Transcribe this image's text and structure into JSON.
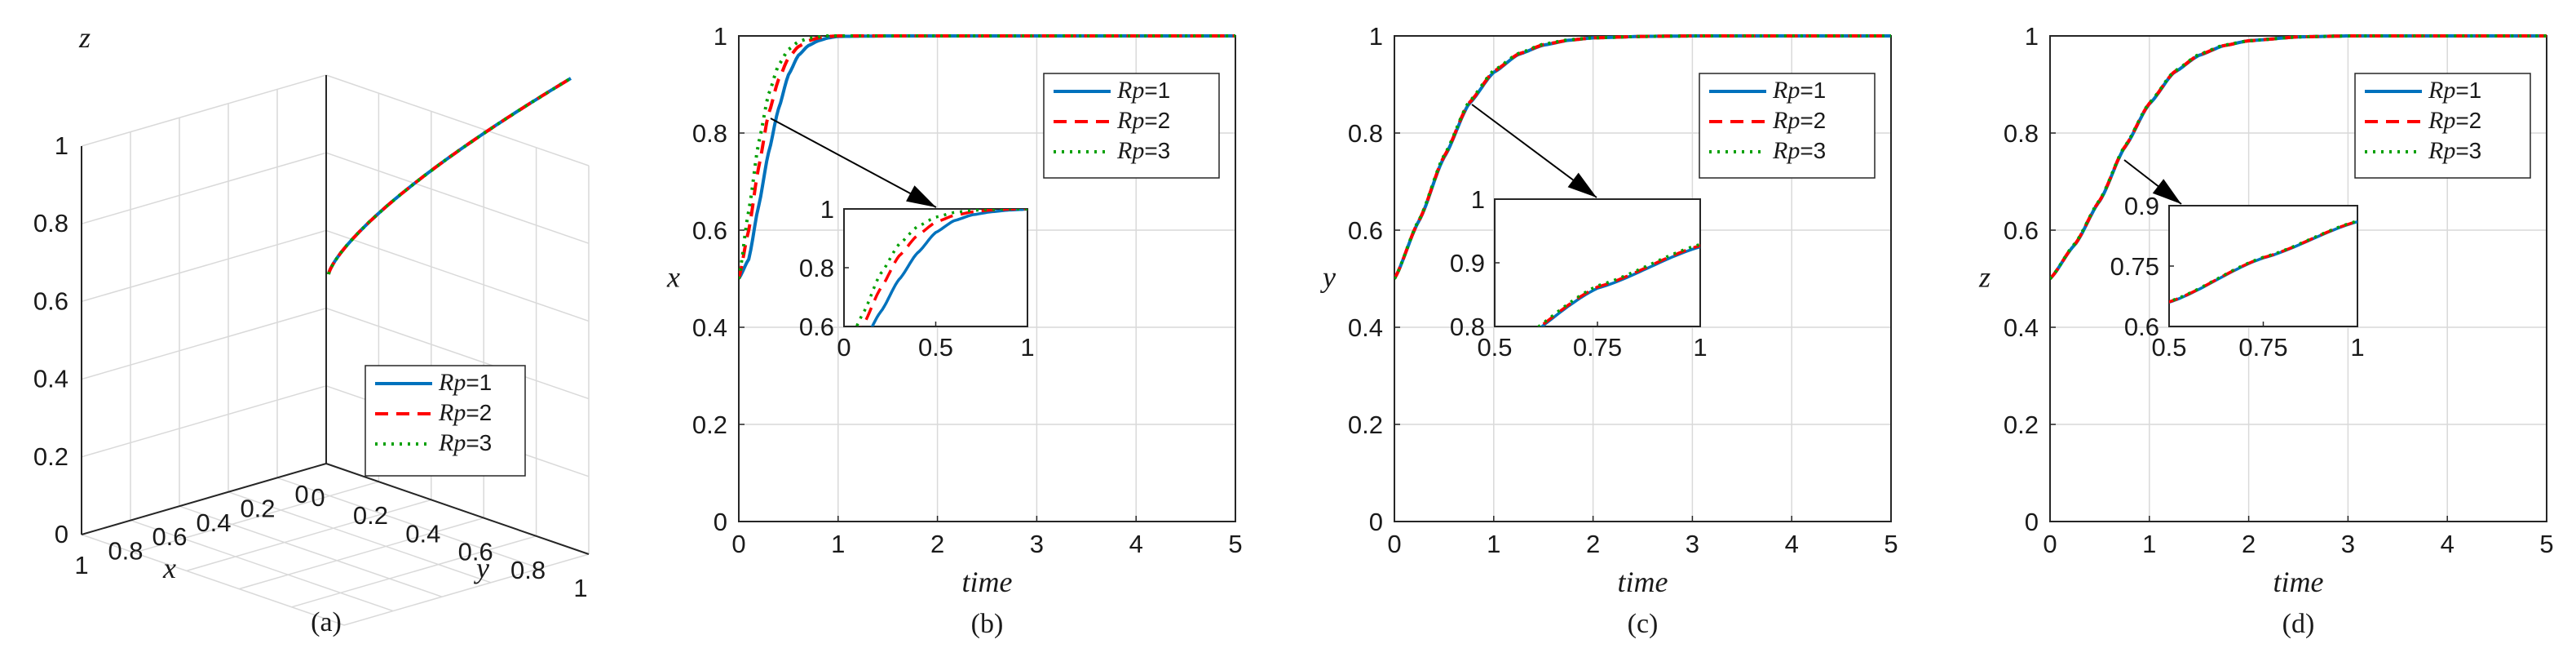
{
  "colors": {
    "rp1": "#0072BD",
    "rp2": "#FF0000",
    "rp3": "#00A000",
    "grid": "#d9d9d9",
    "axis": "#262626"
  },
  "legend_names": [
    "Rp=1",
    "Rp=2",
    "Rp=3"
  ],
  "legend": {
    "prefix": "Rp",
    "suffixes": [
      "=1",
      "=2",
      "=3"
    ]
  },
  "chart_data": [
    {
      "panel": "a",
      "type": "line3d",
      "caption": "(a)",
      "xlabel": "x",
      "ylabel": "y",
      "zlabel": "z",
      "xlim": [
        0,
        1
      ],
      "ylim": [
        0,
        1
      ],
      "zlim": [
        0,
        1
      ],
      "xticks": [
        "0",
        "0.2",
        "0.4",
        "0.6",
        "0.8",
        "1"
      ],
      "yticks": [
        "0",
        "0.2",
        "0.4",
        "0.6",
        "0.8",
        "1"
      ],
      "zticks": [
        "0",
        "0.2",
        "0.4",
        "0.6",
        "0.8",
        "1"
      ],
      "grid": true,
      "legend_position": "bottom-right",
      "series": [
        {
          "name": "Rp=1",
          "style": "solid",
          "x": [
            0.5,
            0.62,
            0.75,
            0.85,
            0.92,
            0.97,
            1.0
          ],
          "y": [
            0.5,
            0.56,
            0.66,
            0.76,
            0.85,
            0.93,
            1.0
          ],
          "z": [
            0.5,
            0.55,
            0.62,
            0.7,
            0.79,
            0.89,
            1.0
          ]
        },
        {
          "name": "Rp=2",
          "style": "dashed",
          "x": [
            0.5,
            0.66,
            0.8,
            0.89,
            0.95,
            0.98,
            1.0
          ],
          "y": [
            0.5,
            0.56,
            0.66,
            0.76,
            0.85,
            0.93,
            1.0
          ],
          "z": [
            0.5,
            0.55,
            0.62,
            0.7,
            0.79,
            0.89,
            1.0
          ]
        },
        {
          "name": "Rp=3",
          "style": "dotted",
          "x": [
            0.5,
            0.7,
            0.84,
            0.92,
            0.97,
            0.99,
            1.0
          ],
          "y": [
            0.5,
            0.56,
            0.66,
            0.76,
            0.85,
            0.93,
            1.0
          ],
          "z": [
            0.5,
            0.55,
            0.62,
            0.7,
            0.79,
            0.89,
            1.0
          ]
        }
      ]
    },
    {
      "panel": "b",
      "type": "line",
      "caption": "(b)",
      "xlabel": "time",
      "ylabel": "x",
      "xlim": [
        0,
        5
      ],
      "ylim": [
        0,
        1
      ],
      "xticks": [
        "0",
        "1",
        "2",
        "3",
        "4",
        "5"
      ],
      "yticks": [
        "0",
        "0.2",
        "0.4",
        "0.6",
        "0.8",
        "1"
      ],
      "grid": true,
      "legend_position": "top-right",
      "series": [
        {
          "name": "Rp=1",
          "style": "solid",
          "x": [
            0,
            0.1,
            0.2,
            0.3,
            0.4,
            0.5,
            0.6,
            0.7,
            0.8,
            0.9,
            1.0,
            1.5,
            5
          ],
          "y": [
            0.5,
            0.54,
            0.65,
            0.76,
            0.85,
            0.92,
            0.96,
            0.98,
            0.99,
            0.996,
            0.999,
            1,
            1
          ]
        },
        {
          "name": "Rp=2",
          "style": "dashed",
          "x": [
            0,
            0.1,
            0.2,
            0.3,
            0.4,
            0.5,
            0.6,
            0.7,
            0.8,
            0.9,
            1.0,
            1.5,
            5
          ],
          "y": [
            0.5,
            0.6,
            0.73,
            0.84,
            0.91,
            0.955,
            0.978,
            0.99,
            0.996,
            0.999,
            1,
            1,
            1
          ]
        },
        {
          "name": "Rp=3",
          "style": "dotted",
          "x": [
            0,
            0.1,
            0.2,
            0.3,
            0.4,
            0.5,
            0.6,
            0.7,
            0.8,
            0.9,
            1.0,
            1.5,
            5
          ],
          "y": [
            0.5,
            0.64,
            0.78,
            0.88,
            0.94,
            0.972,
            0.988,
            0.995,
            0.998,
            1,
            1,
            1,
            1
          ]
        }
      ],
      "inset": {
        "xlim": [
          0,
          1
        ],
        "ylim": [
          0.6,
          1
        ],
        "xticks": [
          "0",
          "0.5",
          "1"
        ],
        "yticks": [
          "0.6",
          "0.8",
          "1"
        ]
      }
    },
    {
      "panel": "c",
      "type": "line",
      "caption": "(c)",
      "xlabel": "time",
      "ylabel": "y",
      "xlim": [
        0,
        5
      ],
      "ylim": [
        0,
        1
      ],
      "xticks": [
        "0",
        "1",
        "2",
        "3",
        "4",
        "5"
      ],
      "yticks": [
        "0",
        "0.2",
        "0.4",
        "0.6",
        "0.8",
        "1"
      ],
      "grid": true,
      "legend_position": "top-right",
      "series": [
        {
          "name": "Rp=1",
          "style": "solid",
          "x": [
            0,
            0.25,
            0.5,
            0.75,
            1.0,
            1.25,
            1.5,
            1.75,
            2.0,
            2.5,
            3.0,
            5
          ],
          "y": [
            0.5,
            0.62,
            0.75,
            0.86,
            0.925,
            0.962,
            0.981,
            0.991,
            0.996,
            0.999,
            1,
            1
          ]
        },
        {
          "name": "Rp=2",
          "style": "dashed",
          "x": [
            0,
            0.25,
            0.5,
            0.75,
            1.0,
            1.25,
            1.5,
            1.75,
            2.0,
            2.5,
            3.0,
            5
          ],
          "y": [
            0.5,
            0.621,
            0.752,
            0.862,
            0.927,
            0.963,
            0.982,
            0.991,
            0.996,
            0.999,
            1,
            1
          ]
        },
        {
          "name": "Rp=3",
          "style": "dotted",
          "x": [
            0,
            0.25,
            0.5,
            0.75,
            1.0,
            1.25,
            1.5,
            1.75,
            2.0,
            2.5,
            3.0,
            5
          ],
          "y": [
            0.5,
            0.622,
            0.754,
            0.864,
            0.929,
            0.964,
            0.983,
            0.992,
            0.996,
            0.999,
            1,
            1
          ]
        }
      ],
      "inset": {
        "xlim": [
          0.5,
          1
        ],
        "ylim": [
          0.8,
          1
        ],
        "xticks": [
          "0.5",
          "0.75",
          "1"
        ],
        "yticks": [
          "0.8",
          "0.9",
          "1"
        ]
      }
    },
    {
      "panel": "d",
      "type": "line",
      "caption": "(d)",
      "xlabel": "time",
      "ylabel": "z",
      "xlim": [
        0,
        5
      ],
      "ylim": [
        0,
        1
      ],
      "xticks": [
        "0",
        "1",
        "2",
        "3",
        "4",
        "5"
      ],
      "yticks": [
        "0",
        "0.2",
        "0.4",
        "0.6",
        "0.8",
        "1"
      ],
      "grid": true,
      "legend_position": "top-right",
      "series": [
        {
          "name": "Rp=1",
          "style": "solid",
          "x": [
            0,
            0.25,
            0.5,
            0.75,
            1.0,
            1.25,
            1.5,
            1.75,
            2.0,
            2.5,
            3.0,
            5
          ],
          "y": [
            0.5,
            0.57,
            0.66,
            0.77,
            0.86,
            0.925,
            0.96,
            0.98,
            0.99,
            0.998,
            1,
            1
          ]
        },
        {
          "name": "Rp=2",
          "style": "dashed",
          "x": [
            0,
            0.25,
            0.5,
            0.75,
            1.0,
            1.25,
            1.5,
            1.75,
            2.0,
            2.5,
            3.0,
            5
          ],
          "y": [
            0.5,
            0.571,
            0.661,
            0.771,
            0.861,
            0.926,
            0.961,
            0.98,
            0.99,
            0.998,
            1,
            1
          ]
        },
        {
          "name": "Rp=3",
          "style": "dotted",
          "x": [
            0,
            0.25,
            0.5,
            0.75,
            1.0,
            1.25,
            1.5,
            1.75,
            2.0,
            2.5,
            3.0,
            5
          ],
          "y": [
            0.5,
            0.572,
            0.662,
            0.772,
            0.862,
            0.927,
            0.962,
            0.981,
            0.99,
            0.998,
            1,
            1
          ]
        }
      ],
      "inset": {
        "xlim": [
          0.5,
          1
        ],
        "ylim": [
          0.6,
          0.9
        ],
        "xticks": [
          "0.5",
          "0.75",
          "1"
        ],
        "yticks": [
          "0.6",
          "0.75",
          "0.9"
        ]
      }
    }
  ]
}
